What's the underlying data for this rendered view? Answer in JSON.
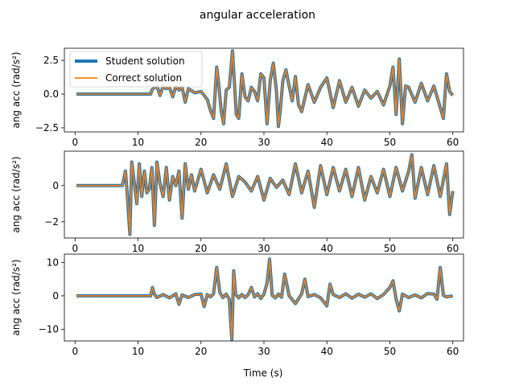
{
  "chart_data": {
    "type": "line",
    "title": "angular acceleration",
    "xlabel": "Time (s)",
    "legend": {
      "placement": "top-left",
      "entries": [
        {
          "name": "Student solution",
          "color": "#1f77b4"
        },
        {
          "name": "Correct solution",
          "color": "#ff7f0e"
        }
      ]
    },
    "colors": {
      "student": "#1f77b4",
      "correct": "#ff7f0e"
    },
    "subplots": [
      {
        "ylabel": "ang acc (rad/s²)",
        "xlim": [
          -1.7,
          61.7
        ],
        "ylim": [
          -2.8,
          3.4
        ],
        "xticks": [
          0,
          10,
          20,
          30,
          40,
          50,
          60
        ],
        "yticks": [
          -2.5,
          0.0,
          2.5
        ],
        "ytick_labels": [
          "−2.5",
          "0.0",
          "2.5"
        ],
        "legend_shown": true,
        "series": [
          {
            "name": "Student solution",
            "color": "#1f77b4"
          },
          {
            "name": "Correct solution",
            "color": "#ff7f0e"
          }
        ],
        "x": [
          0.2,
          12.0,
          12.2,
          12.6,
          13.0,
          13.5,
          14.0,
          14.5,
          15.0,
          15.5,
          16.0,
          16.5,
          17.0,
          17.5,
          18.0,
          19.0,
          20.0,
          21.0,
          21.5,
          22.0,
          22.5,
          22.8,
          23.2,
          23.6,
          24.0,
          24.5,
          25.0,
          25.3,
          25.6,
          26.0,
          26.5,
          27.0,
          27.5,
          28.0,
          28.5,
          29.0,
          29.5,
          30.0,
          30.5,
          31.0,
          31.5,
          32.0,
          32.3,
          32.6,
          33.0,
          33.5,
          34.0,
          34.5,
          35.0,
          35.5,
          36.0,
          37.0,
          38.0,
          39.0,
          40.0,
          41.0,
          42.0,
          43.0,
          44.0,
          45.0,
          46.0,
          47.0,
          48.0,
          49.0,
          50.0,
          50.5,
          51.0,
          51.5,
          52.0,
          52.5,
          53.0,
          54.0,
          55.0,
          56.0,
          57.0,
          58.0,
          58.5,
          59.0,
          59.5,
          60.0
        ],
        "y": [
          0.0,
          0.0,
          0.3,
          0.5,
          0.6,
          -0.1,
          0.6,
          0.4,
          0.5,
          -0.2,
          0.6,
          0.3,
          0.5,
          -0.6,
          0.4,
          0.1,
          0.2,
          -0.4,
          -1.2,
          -1.8,
          2.0,
          0.8,
          -1.2,
          -2.2,
          0.3,
          0.5,
          3.2,
          1.0,
          -1.5,
          -1.8,
          1.5,
          -0.2,
          -0.5,
          0.5,
          0.2,
          -0.5,
          1.5,
          1.2,
          -2.2,
          1.0,
          2.3,
          0.2,
          -2.4,
          -1.2,
          1.0,
          1.8,
          0.6,
          -0.5,
          1.3,
          -0.8,
          -1.3,
          0.7,
          -0.6,
          0.5,
          1.2,
          -1.0,
          1.0,
          -0.6,
          0.5,
          -0.9,
          0.3,
          -0.3,
          0.2,
          -0.8,
          0.6,
          2.0,
          -1.5,
          2.6,
          -2.2,
          0.6,
          0.5,
          -0.6,
          0.8,
          -0.5,
          0.6,
          -1.0,
          -1.8,
          1.5,
          0.2,
          -0.1
        ]
      },
      {
        "ylabel": "ang acc (rad/s²)",
        "xlim": [
          -1.7,
          61.7
        ],
        "ylim": [
          -2.9,
          1.9
        ],
        "xticks": [
          0,
          10,
          20,
          30,
          40,
          50,
          60
        ],
        "yticks": [
          -2,
          0
        ],
        "ytick_labels": [
          "−2",
          "0"
        ],
        "legend_shown": false,
        "series": [
          {
            "name": "Student solution",
            "color": "#1f77b4"
          },
          {
            "name": "Correct solution",
            "color": "#ff7f0e"
          }
        ],
        "x": [
          0.2,
          7.5,
          8.0,
          8.3,
          8.7,
          9.0,
          9.4,
          9.8,
          10.2,
          10.6,
          11.0,
          11.4,
          11.8,
          12.2,
          12.6,
          13.0,
          13.5,
          14.0,
          14.5,
          15.0,
          15.5,
          16.0,
          16.5,
          17.0,
          17.5,
          18.0,
          18.5,
          19.0,
          20.0,
          21.0,
          22.0,
          23.0,
          24.0,
          25.0,
          26.0,
          27.0,
          28.0,
          29.0,
          30.0,
          31.0,
          32.0,
          33.0,
          34.0,
          35.0,
          36.0,
          37.0,
          38.0,
          39.0,
          40.0,
          41.0,
          42.0,
          43.0,
          44.0,
          45.0,
          46.0,
          47.0,
          48.0,
          49.0,
          50.0,
          51.0,
          52.0,
          53.0,
          53.5,
          54.0,
          55.0,
          56.0,
          57.0,
          58.0,
          59.0,
          59.5,
          60.0
        ],
        "y": [
          0.0,
          0.0,
          0.8,
          -0.5,
          -2.7,
          1.3,
          0.2,
          -1.0,
          1.2,
          -0.6,
          0.8,
          -0.4,
          -0.2,
          1.0,
          -2.2,
          1.3,
          0.1,
          -0.6,
          1.0,
          -0.8,
          0.5,
          0.0,
          0.8,
          -1.8,
          1.2,
          -0.2,
          0.6,
          -0.3,
          0.9,
          -0.4,
          0.6,
          -0.2,
          1.2,
          -0.6,
          0.5,
          0.2,
          -0.3,
          0.5,
          -0.8,
          0.4,
          -0.1,
          0.3,
          -0.5,
          1.2,
          -0.4,
          0.8,
          -1.2,
          1.1,
          -0.5,
          1.0,
          -0.3,
          0.9,
          -0.6,
          1.0,
          -0.8,
          0.5,
          -0.4,
          0.9,
          -0.6,
          1.0,
          -0.3,
          0.8,
          1.7,
          -0.7,
          1.0,
          -0.5,
          1.1,
          -0.6,
          1.2,
          -1.6,
          -0.3
        ]
      },
      {
        "ylabel": "ang acc (rad/s²)",
        "xlim": [
          -1.7,
          61.7
        ],
        "ylim": [
          -13.5,
          12.5
        ],
        "xticks": [
          0,
          10,
          20,
          30,
          40,
          50,
          60
        ],
        "yticks": [
          -10,
          0,
          10
        ],
        "ytick_labels": [
          "−10",
          "0",
          "10"
        ],
        "legend_shown": false,
        "series": [
          {
            "name": "Student solution",
            "color": "#1f77b4"
          },
          {
            "name": "Correct solution",
            "color": "#ff7f0e"
          }
        ],
        "x": [
          0.2,
          12.0,
          12.3,
          12.6,
          13.0,
          14.0,
          15.0,
          16.0,
          16.5,
          17.0,
          18.0,
          19.0,
          20.0,
          20.5,
          21.0,
          21.5,
          22.0,
          22.5,
          23.0,
          23.5,
          24.0,
          24.5,
          24.9,
          25.2,
          25.5,
          26.0,
          26.5,
          27.0,
          27.5,
          28.0,
          28.5,
          29.0,
          29.5,
          30.0,
          30.5,
          30.9,
          31.3,
          31.8,
          32.3,
          32.8,
          33.3,
          34.0,
          35.0,
          36.0,
          36.5,
          37.0,
          38.0,
          39.0,
          40.0,
          40.5,
          41.0,
          42.0,
          43.0,
          44.0,
          45.0,
          46.0,
          47.0,
          48.0,
          49.0,
          50.0,
          50.5,
          51.0,
          51.5,
          52.0,
          53.0,
          54.0,
          55.0,
          56.0,
          57.0,
          57.5,
          58.0,
          58.5,
          59.0,
          60.0
        ],
        "y": [
          0.0,
          0.0,
          2.5,
          0.5,
          -0.5,
          0.4,
          -0.6,
          0.6,
          -2.5,
          0.3,
          -0.5,
          0.4,
          0.5,
          -3.2,
          0.4,
          -0.3,
          0.6,
          8.5,
          1.0,
          -0.5,
          0.5,
          -1.0,
          -13.0,
          7.5,
          0.5,
          -0.6,
          0.4,
          -0.5,
          0.4,
          2.5,
          -0.3,
          0.6,
          -0.8,
          0.5,
          3.8,
          11.0,
          0.2,
          -0.6,
          0.5,
          -0.4,
          6.5,
          0.0,
          -2.3,
          0.6,
          5.0,
          -0.2,
          0.4,
          -0.6,
          -3.0,
          3.5,
          0.4,
          -0.5,
          0.6,
          -0.7,
          0.5,
          -0.4,
          0.6,
          -0.8,
          0.4,
          2.5,
          4.5,
          -1.0,
          -4.5,
          0.5,
          -0.5,
          0.3,
          -0.6,
          0.7,
          0.5,
          -1.0,
          8.5,
          0.2,
          -0.3,
          0.0
        ]
      }
    ]
  }
}
